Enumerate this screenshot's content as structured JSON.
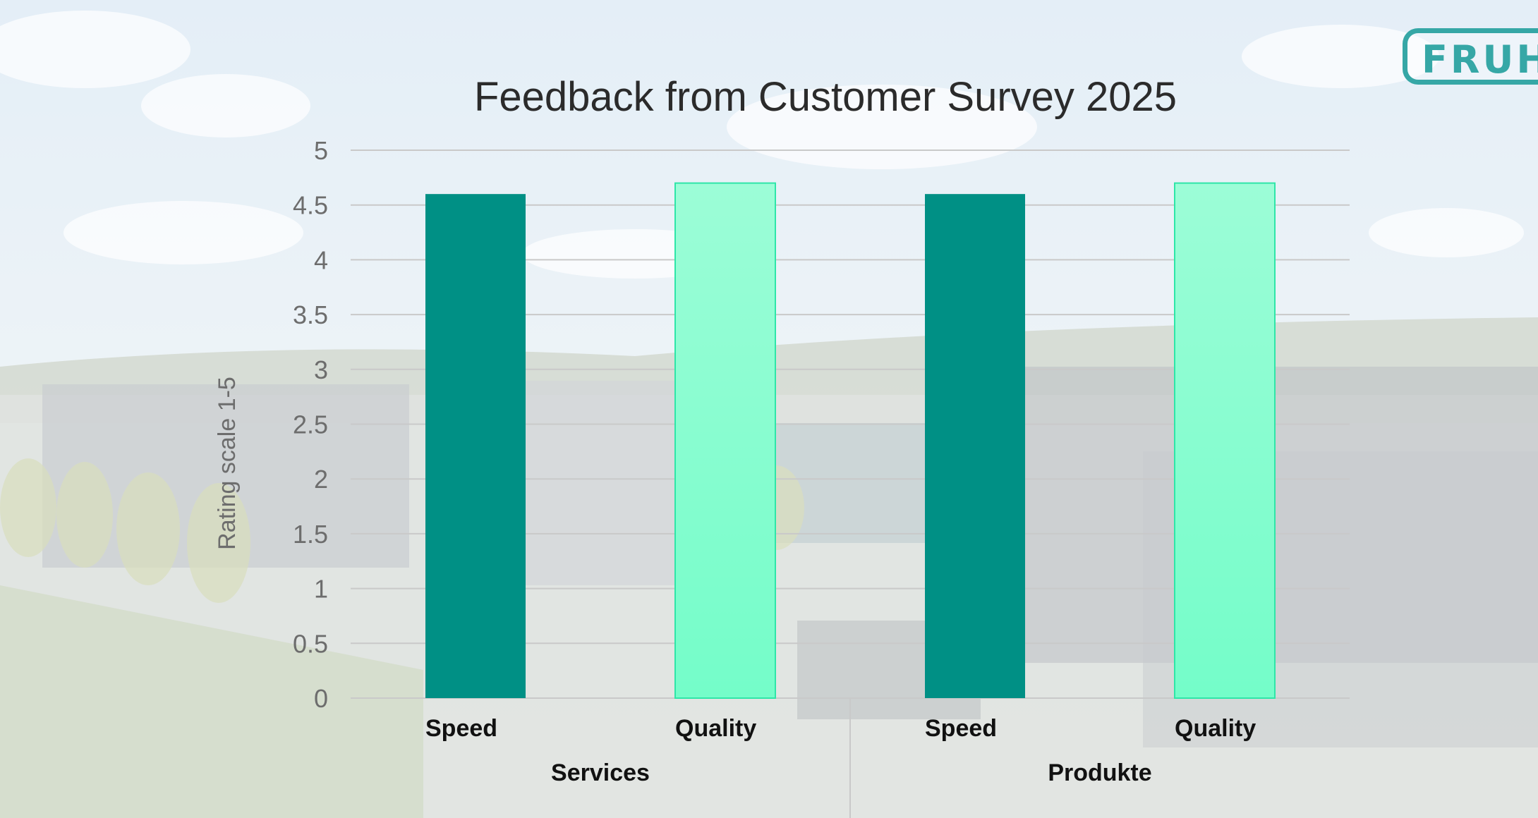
{
  "logo": {
    "text": "FRUH"
  },
  "colors": {
    "speed": "#009085",
    "quality_top": "#9cfdd7",
    "quality_bottom": "#74fdc9",
    "quality_stroke": "#2ee6a8",
    "grid": "#c9c9c9",
    "title": "#2b2b2b",
    "axis_text": "#6d6d6d",
    "category_text": "#111111"
  },
  "chart_data": {
    "type": "bar",
    "title": "Feedback from Customer Survey 2025",
    "xlabel": "",
    "ylabel": "Rating scale 1-5",
    "ylim": [
      0,
      5
    ],
    "yticks": [
      "0",
      "0.5",
      "1",
      "1.5",
      "2",
      "2.5",
      "3",
      "3.5",
      "4",
      "4.5",
      "5"
    ],
    "grid": true,
    "groups": [
      "Services",
      "Produkte"
    ],
    "categories": [
      "Speed",
      "Quality",
      "Speed",
      "Quality"
    ],
    "values": [
      4.6,
      4.7,
      4.6,
      4.7
    ]
  }
}
